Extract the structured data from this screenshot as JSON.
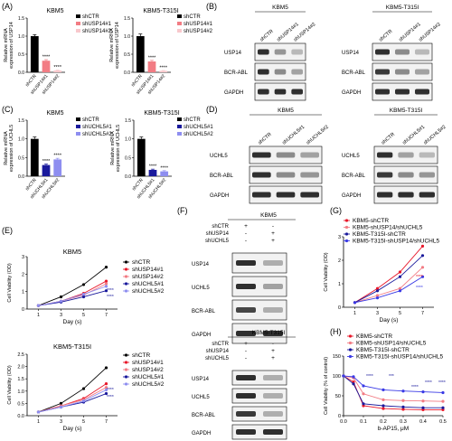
{
  "colors": {
    "red": "#e8182a",
    "pink": "#f27c84",
    "lightpink": "#f8c8cc",
    "navy": "#1a1a9c",
    "blue": "#3a3ae6",
    "lightblue": "#8e8ef0",
    "magenta": "#e83060",
    "black": "#000000"
  },
  "panels": {
    "A": "(A)",
    "B": "(B)",
    "C": "(C)",
    "D": "(D)",
    "E": "(E)",
    "F": "(F)",
    "G": "(G)",
    "H": "(H)"
  },
  "chart_data": [
    {
      "id": "A1",
      "type": "bar",
      "title": "KBM5",
      "ylabel": "Relative mRNA\nexpression of USP14",
      "ylim": [
        0,
        1.5
      ],
      "yticks": [
        "0.0",
        "0.5",
        "1.0",
        "1.5"
      ],
      "categories": [
        "shCTR",
        "shUSP14#1",
        "shUSP14#2"
      ],
      "values": [
        1.0,
        0.32,
        0.05
      ],
      "errors": [
        0.04,
        0.03,
        0.01
      ],
      "colors": [
        "#000000",
        "#f27c84",
        "#f8c8cc"
      ],
      "stars": [
        "",
        "****",
        "****"
      ],
      "legend": [
        "shCTR",
        "shUSP14#1",
        "shUSP14#2"
      ]
    },
    {
      "id": "A2",
      "type": "bar",
      "title": "KBM5-T315I",
      "ylabel": "Relative mRNA\nexpression of USP14",
      "ylim": [
        0,
        1.5
      ],
      "yticks": [
        "0.0",
        "0.5",
        "1.0",
        "1.5"
      ],
      "categories": [
        "shCTR",
        "shUSP14#1",
        "shUSP14#2"
      ],
      "values": [
        1.0,
        0.3,
        0.04
      ],
      "errors": [
        0.06,
        0.03,
        0.01
      ],
      "colors": [
        "#000000",
        "#f27c84",
        "#f8c8cc"
      ],
      "stars": [
        "",
        "****",
        "****"
      ],
      "legend": [
        "shCTR",
        "shUSP14#1",
        "shUSP14#2"
      ]
    },
    {
      "id": "C1",
      "type": "bar",
      "title": "KBM5",
      "ylabel": "Relative mRNA\nexpression of UCHL5",
      "ylim": [
        0,
        1.5
      ],
      "yticks": [
        "0.0",
        "0.5",
        "1.0",
        "1.5"
      ],
      "categories": [
        "shCTR",
        "shUCHL5#1",
        "shUCHL5#2"
      ],
      "values": [
        1.0,
        0.3,
        0.45
      ],
      "errors": [
        0.05,
        0.03,
        0.03
      ],
      "colors": [
        "#000000",
        "#1a1a9c",
        "#8e8ef0"
      ],
      "stars": [
        "",
        "****",
        "****"
      ],
      "legend": [
        "shCTR",
        "shUCHL5#1",
        "shUCHL5#2"
      ]
    },
    {
      "id": "C2",
      "type": "bar",
      "title": "KBM5-T315I",
      "ylabel": "Relative mRNA\nexpression of UCHL5",
      "ylim": [
        0,
        1.5
      ],
      "yticks": [
        "0.0",
        "0.5",
        "1.0",
        "1.5"
      ],
      "categories": [
        "shCTR",
        "shUCHL5#1",
        "shUCHL5#2"
      ],
      "values": [
        1.0,
        0.17,
        0.13
      ],
      "errors": [
        0.05,
        0.02,
        0.02
      ],
      "colors": [
        "#000000",
        "#1a1a9c",
        "#8e8ef0"
      ],
      "stars": [
        "",
        "****",
        "****"
      ],
      "legend": [
        "shCTR",
        "shUCHL5#1",
        "shUCHL5#2"
      ]
    },
    {
      "id": "E1",
      "type": "line",
      "title": "KBM5",
      "ylabel": "Cell Viability (OD)",
      "xlabel": "Day (s)",
      "x": [
        1,
        3,
        5,
        7
      ],
      "ylim": [
        0,
        3
      ],
      "yticks": [
        "0",
        "1",
        "2",
        "3"
      ],
      "xticks": [
        "1",
        "3",
        "5",
        "7"
      ],
      "series": [
        {
          "name": "shCTR",
          "color": "#000000",
          "values": [
            0.2,
            0.7,
            1.4,
            2.4
          ]
        },
        {
          "name": "shUSP14#1",
          "color": "#e8182a",
          "values": [
            0.2,
            0.45,
            0.9,
            1.6
          ]
        },
        {
          "name": "shUSP14#2",
          "color": "#f27c84",
          "values": [
            0.2,
            0.45,
            0.8,
            1.45
          ]
        },
        {
          "name": "shUCHL5#1",
          "color": "#1a1a9c",
          "values": [
            0.2,
            0.4,
            0.7,
            1.05
          ]
        },
        {
          "name": "shUCHL5#2",
          "color": "#8e8ef0",
          "values": [
            0.2,
            0.45,
            0.85,
            1.3
          ]
        }
      ],
      "stars": [
        "****",
        "****"
      ]
    },
    {
      "id": "E2",
      "type": "line",
      "title": "KBM5-T315I",
      "ylabel": "Cell Viability (OD)",
      "xlabel": "Day (s)",
      "x": [
        1,
        3,
        5,
        7
      ],
      "ylim": [
        0,
        2.5
      ],
      "yticks": [
        "0.0",
        "0.5",
        "1.0",
        "1.5",
        "2.0",
        "2.5"
      ],
      "xticks": [
        "1",
        "3",
        "5",
        "7"
      ],
      "series": [
        {
          "name": "shCTR",
          "color": "#000000",
          "values": [
            0.15,
            0.5,
            1.1,
            1.95
          ]
        },
        {
          "name": "shUSP14#1",
          "color": "#e8182a",
          "values": [
            0.15,
            0.4,
            0.7,
            1.3
          ]
        },
        {
          "name": "shUSP14#2",
          "color": "#f27c84",
          "values": [
            0.15,
            0.4,
            0.65,
            1.15
          ]
        },
        {
          "name": "shUCHL5#1",
          "color": "#1a1a9c",
          "values": [
            0.15,
            0.35,
            0.55,
            0.9
          ]
        },
        {
          "name": "shUCHL5#2",
          "color": "#8e8ef0",
          "values": [
            0.15,
            0.35,
            0.6,
            1.05
          ]
        }
      ],
      "stars": [
        "****",
        "****"
      ]
    },
    {
      "id": "G",
      "type": "line",
      "ylabel": "Cell Viability (OD)",
      "xlabel": "Day (s)",
      "x": [
        1,
        3,
        5,
        7
      ],
      "ylim": [
        0,
        3
      ],
      "yticks": [
        "0",
        "1",
        "2",
        "3"
      ],
      "xticks": [
        "1",
        "3",
        "5",
        "7"
      ],
      "series": [
        {
          "name": "KBM5-shCTR",
          "color": "#e8182a",
          "values": [
            0.2,
            0.8,
            1.5,
            2.6
          ]
        },
        {
          "name": "KBM5-shUSP14/shUCHL5",
          "color": "#f27c84",
          "values": [
            0.2,
            0.5,
            0.8,
            1.7
          ]
        },
        {
          "name": "KBM5-T315I-shCTR",
          "color": "#1a1a9c",
          "values": [
            0.2,
            0.7,
            1.3,
            2.2
          ]
        },
        {
          "name": "KBM5-T315I-shUSP14/shUCHL5",
          "color": "#3a3ae6",
          "values": [
            0.2,
            0.4,
            0.7,
            1.3
          ]
        }
      ],
      "stars": [
        "****",
        "****"
      ]
    },
    {
      "id": "H",
      "type": "line",
      "ylabel": "Cell Viability (% of control)",
      "xlabel": "b-AP15, μM",
      "x": [
        0,
        0.05,
        0.1,
        0.2,
        0.3,
        0.4,
        0.5
      ],
      "ylim": [
        0,
        150
      ],
      "yticks": [
        "0",
        "50",
        "100",
        "150"
      ],
      "xticks": [
        "0.0",
        "0.1",
        "0.2",
        "0.3",
        "0.4",
        "0.5"
      ],
      "series": [
        {
          "name": "KBM5-shCTR",
          "color": "#e8182a",
          "values": [
            100,
            85,
            25,
            18,
            16,
            15,
            15
          ]
        },
        {
          "name": "KBM5-shUSP14/shUCHL5",
          "color": "#f27c84",
          "values": [
            100,
            95,
            55,
            40,
            38,
            37,
            36
          ]
        },
        {
          "name": "KBM5-T315I-shCTR",
          "color": "#1a1a9c",
          "values": [
            100,
            80,
            30,
            25,
            22,
            20,
            20
          ]
        },
        {
          "name": "KBM5-T315I-shUSP14/shUCHL5",
          "color": "#3a3ae6",
          "values": [
            100,
            98,
            75,
            65,
            62,
            60,
            58
          ]
        }
      ],
      "stars": [
        "****",
        "***",
        "****",
        "****",
        "****"
      ]
    }
  ],
  "blots": {
    "B1": {
      "title": "KBM5",
      "lanes": [
        "shCTR",
        "shUSP14#1",
        "shUSP14#2"
      ],
      "rows": [
        {
          "label": "USP14",
          "bands": [
            0.9,
            0.45,
            0.3
          ]
        },
        {
          "label": "BCR-ABL",
          "bands": [
            0.9,
            0.5,
            0.4
          ]
        },
        {
          "label": "GAPDH",
          "bands": [
            0.9,
            0.9,
            0.9
          ]
        }
      ]
    },
    "B2": {
      "title": "KBM5-T315I",
      "lanes": [
        "shCTR",
        "shUSP14#1",
        "shUSP14#2"
      ],
      "rows": [
        {
          "label": "USP14",
          "bands": [
            0.9,
            0.5,
            0.3
          ]
        },
        {
          "label": "BCR-ABL",
          "bands": [
            0.85,
            0.5,
            0.4
          ]
        },
        {
          "label": "GAPDH",
          "bands": [
            0.9,
            0.9,
            0.9
          ]
        }
      ]
    },
    "D1": {
      "title": "KBM5",
      "lanes": [
        "shCTR",
        "shUCHL5#1",
        "shUCHL5#2"
      ],
      "rows": [
        {
          "label": "UCHL5",
          "bands": [
            0.9,
            0.5,
            0.4
          ]
        },
        {
          "label": "BCR-ABL",
          "bands": [
            0.9,
            0.5,
            0.45
          ]
        },
        {
          "label": "GAPDH",
          "bands": [
            0.9,
            0.9,
            0.9
          ]
        }
      ]
    },
    "D2": {
      "title": "KBM5-T315I",
      "lanes": [
        "shCTR",
        "shUCHL5#1",
        "shUCHL5#2"
      ],
      "rows": [
        {
          "label": "UCHL5",
          "bands": [
            0.9,
            0.4,
            0.3
          ]
        },
        {
          "label": "BCR-ABL",
          "bands": [
            0.85,
            0.5,
            0.45
          ]
        },
        {
          "label": "GAPDH",
          "bands": [
            0.9,
            0.9,
            0.9
          ]
        }
      ]
    },
    "F1": {
      "title": "KBM5",
      "conds": [
        {
          "label": "shCTR",
          "vals": [
            "+",
            "-"
          ]
        },
        {
          "label": "shUSP14",
          "vals": [
            "-",
            "+"
          ]
        },
        {
          "label": "shUCHL5",
          "vals": [
            "-",
            "+"
          ]
        }
      ],
      "rows": [
        {
          "label": "USP14",
          "bands": [
            0.9,
            0.35
          ]
        },
        {
          "label": "UCHL5",
          "bands": [
            0.9,
            0.4
          ]
        },
        {
          "label": "BCR-ABL",
          "bands": [
            0.8,
            0.35
          ]
        },
        {
          "label": "GAPDH",
          "bands": [
            0.9,
            0.9
          ]
        }
      ]
    },
    "F2": {
      "title": "KBM5-T315I",
      "conds": [
        {
          "label": "shCTR",
          "vals": [
            "+",
            "-"
          ]
        },
        {
          "label": "shUSP14",
          "vals": [
            "-",
            "+"
          ]
        },
        {
          "label": "shUCHL5",
          "vals": [
            "-",
            "+"
          ]
        }
      ],
      "rows": [
        {
          "label": "USP14",
          "bands": [
            0.9,
            0.35
          ]
        },
        {
          "label": "UCHL5",
          "bands": [
            0.9,
            0.35
          ]
        },
        {
          "label": "BCR-ABL",
          "bands": [
            0.85,
            0.35
          ]
        },
        {
          "label": "GAPDH",
          "bands": [
            0.9,
            0.9
          ]
        }
      ]
    }
  }
}
